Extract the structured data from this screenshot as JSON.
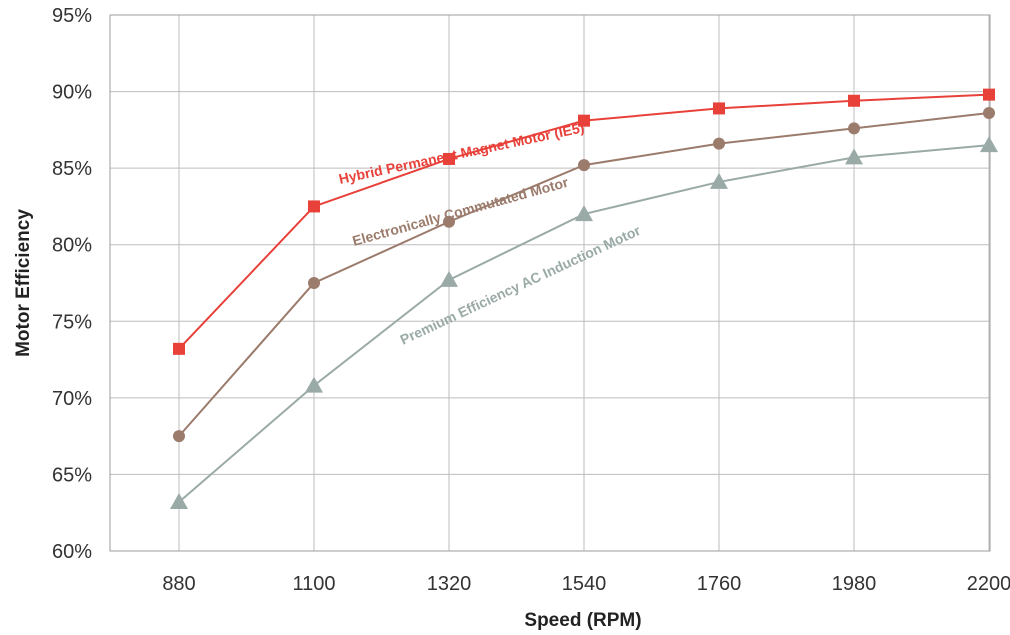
{
  "chart_data": {
    "type": "line",
    "xlabel": "Speed (RPM)",
    "ylabel": "Motor Efficiency",
    "categories": [
      "880",
      "1100",
      "1320",
      "1540",
      "1760",
      "1980",
      "2200"
    ],
    "ylim": [
      60,
      95
    ],
    "yticks": [
      "60%",
      "65%",
      "70%",
      "75%",
      "80%",
      "85%",
      "90%",
      "95%"
    ],
    "grid": true,
    "series": [
      {
        "name": "Hybrid Permanent Magnet Motor (IE5)",
        "color": "#e8413a",
        "marker": "square",
        "values": [
          73.2,
          82.5,
          85.6,
          88.1,
          88.9,
          89.4,
          89.8
        ]
      },
      {
        "name": "Electronically Commutated Motor",
        "color": "#9b7b6c",
        "marker": "circle",
        "values": [
          67.5,
          77.5,
          81.5,
          85.2,
          86.6,
          87.6,
          88.6
        ]
      },
      {
        "name": "Premium Efficiency AC Induction Motor",
        "color": "#9aaaa7",
        "marker": "triangle",
        "values": [
          63.2,
          70.8,
          77.7,
          82.0,
          84.1,
          85.7,
          86.5
        ]
      }
    ]
  }
}
